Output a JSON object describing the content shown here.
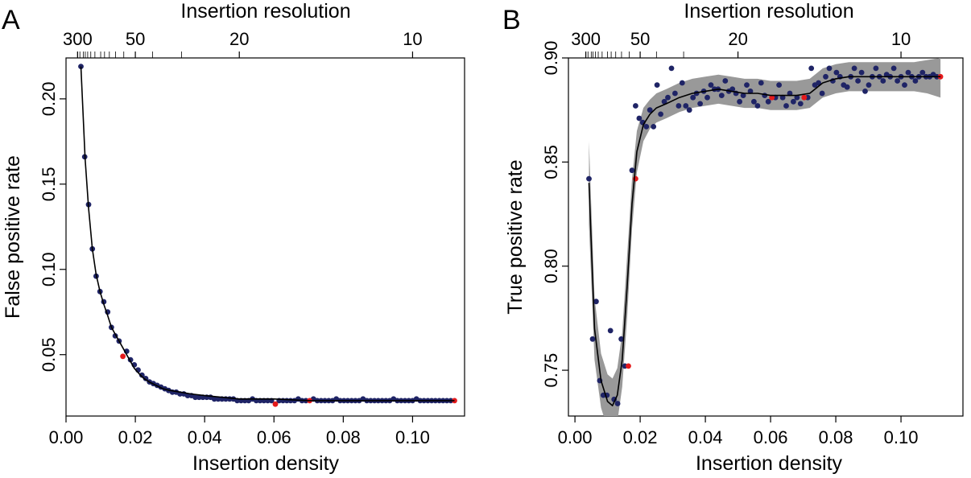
{
  "chart_data": [
    {
      "panel": "A",
      "type": "scatter",
      "xlabel": "Insertion density",
      "ylabel": "False positive rate",
      "top_axis_label": "Insertion resolution",
      "xlim": [
        0,
        0.115
      ],
      "ylim": [
        0.014,
        0.224
      ],
      "x_ticks": [
        0.0,
        0.02,
        0.04,
        0.06,
        0.08,
        0.1
      ],
      "x_tick_labels": [
        "0.00",
        "0.02",
        "0.04",
        "0.06",
        "0.08",
        "0.10"
      ],
      "y_ticks": [
        0.05,
        0.1,
        0.15,
        0.2
      ],
      "y_tick_labels": [
        "0.05",
        "0.10",
        "0.15",
        "0.20"
      ],
      "top_ticks": [
        300,
        50,
        20,
        10
      ],
      "top_tick_labels": [
        "300",
        "50",
        "20",
        "10"
      ],
      "top_minor_ticks": [
        300,
        250,
        200,
        180,
        160,
        140,
        120,
        100,
        90,
        80,
        70,
        60,
        50,
        40,
        30
      ],
      "series": [
        {
          "color": "#1f2466",
          "x": [
            0.0043,
            0.0054,
            0.0065,
            0.0076,
            0.0087,
            0.0098,
            0.0109,
            0.012,
            0.0131,
            0.0142,
            0.0153,
            0.0175,
            0.0186,
            0.0197,
            0.0208,
            0.0219,
            0.023,
            0.0241,
            0.0252,
            0.0263,
            0.0274,
            0.0285,
            0.0296,
            0.0307,
            0.0318,
            0.0329,
            0.034,
            0.0351,
            0.0362,
            0.0373,
            0.0384,
            0.0395,
            0.0406,
            0.0417,
            0.0428,
            0.0439,
            0.045,
            0.0461,
            0.0472,
            0.0483,
            0.0494,
            0.0505,
            0.0516,
            0.0527,
            0.0538,
            0.0549,
            0.056,
            0.0571,
            0.0582,
            0.0593,
            0.0615,
            0.0626,
            0.0637,
            0.0648,
            0.0659,
            0.067,
            0.0681,
            0.0692,
            0.0714,
            0.0725,
            0.0736,
            0.0747,
            0.0758,
            0.0769,
            0.078,
            0.0791,
            0.0802,
            0.0813,
            0.0824,
            0.0835,
            0.0846,
            0.0857,
            0.0868,
            0.0879,
            0.089,
            0.0901,
            0.0912,
            0.0923,
            0.0934,
            0.0945,
            0.0956,
            0.0967,
            0.0978,
            0.0989,
            0.1,
            0.1011,
            0.1022,
            0.1033,
            0.1044,
            0.1055,
            0.1066,
            0.1077,
            0.1088,
            0.1099,
            0.111
          ],
          "y": [
            0.219,
            0.166,
            0.138,
            0.112,
            0.096,
            0.087,
            0.081,
            0.075,
            0.066,
            0.061,
            0.058,
            0.052,
            0.047,
            0.044,
            0.041,
            0.038,
            0.036,
            0.034,
            0.033,
            0.032,
            0.031,
            0.03,
            0.029,
            0.028,
            0.028,
            0.027,
            0.027,
            0.026,
            0.026,
            0.025,
            0.025,
            0.025,
            0.025,
            0.025,
            0.024,
            0.024,
            0.024,
            0.024,
            0.024,
            0.024,
            0.023,
            0.023,
            0.023,
            0.023,
            0.024,
            0.023,
            0.023,
            0.023,
            0.023,
            0.023,
            0.023,
            0.023,
            0.023,
            0.023,
            0.023,
            0.024,
            0.023,
            0.023,
            0.024,
            0.023,
            0.023,
            0.023,
            0.023,
            0.023,
            0.024,
            0.023,
            0.023,
            0.023,
            0.023,
            0.023,
            0.023,
            0.024,
            0.023,
            0.023,
            0.023,
            0.023,
            0.023,
            0.023,
            0.023,
            0.024,
            0.023,
            0.023,
            0.023,
            0.023,
            0.023,
            0.024,
            0.023,
            0.023,
            0.023,
            0.023,
            0.023,
            0.023,
            0.023,
            0.023,
            0.023
          ]
        },
        {
          "color": "#e41a1c",
          "x": [
            0.0164,
            0.0604,
            0.0703,
            0.1121
          ],
          "y": [
            0.049,
            0.021,
            0.023,
            0.023
          ]
        }
      ],
      "curve": {
        "color": "#000000",
        "x": [
          0.0043,
          0.0055,
          0.0065,
          0.0076,
          0.0087,
          0.0098,
          0.011,
          0.012,
          0.0131,
          0.0142,
          0.0153,
          0.0164,
          0.0175,
          0.0186,
          0.0197,
          0.021,
          0.0225,
          0.024,
          0.026,
          0.028,
          0.03,
          0.033,
          0.036,
          0.04,
          0.045,
          0.05,
          0.06,
          0.07,
          0.08,
          0.09,
          0.1,
          0.1121
        ],
        "y": [
          0.219,
          0.165,
          0.136,
          0.112,
          0.097,
          0.087,
          0.079,
          0.073,
          0.066,
          0.062,
          0.058,
          0.054,
          0.05,
          0.046,
          0.042,
          0.039,
          0.036,
          0.034,
          0.032,
          0.03,
          0.029,
          0.028,
          0.027,
          0.026,
          0.025,
          0.024,
          0.024,
          0.023,
          0.023,
          0.023,
          0.023,
          0.023
        ]
      }
    },
    {
      "panel": "B",
      "type": "scatter",
      "xlabel": "Insertion density",
      "ylabel": "True positive rate",
      "top_axis_label": "Insertion resolution",
      "xlim": [
        -0.002,
        0.119
      ],
      "ylim": [
        0.728,
        0.9
      ],
      "x_ticks": [
        0.0,
        0.02,
        0.04,
        0.06,
        0.08,
        0.1
      ],
      "x_tick_labels": [
        "0.00",
        "0.02",
        "0.04",
        "0.06",
        "0.08",
        "0.10"
      ],
      "y_ticks": [
        0.75,
        0.8,
        0.85,
        0.9
      ],
      "y_tick_labels": [
        "0.75",
        "0.80",
        "0.85",
        "0.90"
      ],
      "top_ticks": [
        300,
        50,
        20,
        10
      ],
      "top_tick_labels": [
        "300",
        "50",
        "20",
        "10"
      ],
      "top_minor_ticks": [
        300,
        250,
        200,
        180,
        160,
        140,
        120,
        100,
        90,
        80,
        70,
        60,
        50,
        40,
        30
      ],
      "series": [
        {
          "color": "#1f2466",
          "x": [
            0.0043,
            0.0054,
            0.0065,
            0.0076,
            0.0087,
            0.0098,
            0.0109,
            0.012,
            0.0131,
            0.0142,
            0.0153,
            0.0175,
            0.0186,
            0.0197,
            0.0208,
            0.0219,
            0.023,
            0.0241,
            0.0252,
            0.0263,
            0.0274,
            0.0285,
            0.0296,
            0.0307,
            0.0318,
            0.0329,
            0.034,
            0.0351,
            0.0362,
            0.0373,
            0.0384,
            0.0395,
            0.0406,
            0.0417,
            0.0428,
            0.0439,
            0.045,
            0.0461,
            0.0472,
            0.0483,
            0.0494,
            0.0505,
            0.0516,
            0.0527,
            0.0538,
            0.0549,
            0.056,
            0.0571,
            0.0582,
            0.0593,
            0.0615,
            0.0626,
            0.0637,
            0.0648,
            0.0659,
            0.067,
            0.0681,
            0.0692,
            0.0714,
            0.0725,
            0.0736,
            0.0747,
            0.0758,
            0.0769,
            0.078,
            0.0791,
            0.0802,
            0.0813,
            0.0824,
            0.0835,
            0.0846,
            0.0857,
            0.0868,
            0.0879,
            0.089,
            0.0901,
            0.0912,
            0.0923,
            0.0934,
            0.0945,
            0.0956,
            0.0967,
            0.0978,
            0.0989,
            0.1,
            0.1011,
            0.1022,
            0.1033,
            0.1044,
            0.1055,
            0.1066,
            0.1077,
            0.1088,
            0.1099,
            0.111
          ],
          "y": [
            0.842,
            0.765,
            0.783,
            0.745,
            0.738,
            0.738,
            0.769,
            0.736,
            0.734,
            0.765,
            0.752,
            0.846,
            0.877,
            0.871,
            0.869,
            0.867,
            0.875,
            0.867,
            0.887,
            0.873,
            0.879,
            0.881,
            0.895,
            0.883,
            0.877,
            0.888,
            0.877,
            0.875,
            0.881,
            0.883,
            0.878,
            0.884,
            0.881,
            0.887,
            0.885,
            0.885,
            0.882,
            0.889,
            0.884,
            0.885,
            0.883,
            0.879,
            0.882,
            0.887,
            0.884,
            0.879,
            0.877,
            0.888,
            0.882,
            0.879,
            0.881,
            0.887,
            0.881,
            0.877,
            0.883,
            0.879,
            0.881,
            0.878,
            0.881,
            0.895,
            0.887,
            0.888,
            0.883,
            0.891,
            0.895,
            0.889,
            0.893,
            0.891,
            0.887,
            0.886,
            0.891,
            0.895,
            0.889,
            0.893,
            0.884,
            0.887,
            0.891,
            0.895,
            0.891,
            0.889,
            0.892,
            0.891,
            0.895,
            0.889,
            0.891,
            0.887,
            0.893,
            0.891,
            0.889,
            0.891,
            0.893,
            0.891,
            0.891,
            0.892,
            0.891
          ]
        },
        {
          "color": "#e41a1c",
          "x": [
            0.0164,
            0.0186,
            0.0604,
            0.0703,
            0.1121
          ],
          "y": [
            0.752,
            0.842,
            0.881,
            0.881,
            0.891
          ]
        }
      ],
      "curve": {
        "color": "#000000",
        "x": [
          0.0043,
          0.006,
          0.008,
          0.01,
          0.0115,
          0.013,
          0.0145,
          0.016,
          0.0175,
          0.019,
          0.021,
          0.023,
          0.025,
          0.028,
          0.032,
          0.036,
          0.04,
          0.044,
          0.048,
          0.052,
          0.056,
          0.06,
          0.064,
          0.068,
          0.072,
          0.076,
          0.08,
          0.084,
          0.088,
          0.092,
          0.096,
          0.1,
          0.104,
          0.108,
          0.1121
        ],
        "y": [
          0.84,
          0.77,
          0.745,
          0.735,
          0.733,
          0.738,
          0.755,
          0.79,
          0.83,
          0.855,
          0.868,
          0.873,
          0.876,
          0.878,
          0.881,
          0.883,
          0.884,
          0.885,
          0.884,
          0.883,
          0.883,
          0.882,
          0.882,
          0.882,
          0.883,
          0.888,
          0.89,
          0.891,
          0.891,
          0.891,
          0.891,
          0.891,
          0.891,
          0.891,
          0.891
        ]
      },
      "band": {
        "color": "#999999",
        "x": [
          0.0043,
          0.006,
          0.008,
          0.01,
          0.0115,
          0.013,
          0.0145,
          0.016,
          0.0175,
          0.019,
          0.021,
          0.023,
          0.025,
          0.028,
          0.032,
          0.036,
          0.04,
          0.044,
          0.048,
          0.052,
          0.056,
          0.06,
          0.064,
          0.068,
          0.072,
          0.076,
          0.08,
          0.084,
          0.088,
          0.092,
          0.096,
          0.1,
          0.104,
          0.108,
          0.1121
        ],
        "lower": [
          0.82,
          0.755,
          0.732,
          0.722,
          0.72,
          0.725,
          0.742,
          0.775,
          0.818,
          0.845,
          0.86,
          0.866,
          0.869,
          0.871,
          0.874,
          0.876,
          0.877,
          0.878,
          0.877,
          0.876,
          0.876,
          0.875,
          0.875,
          0.875,
          0.876,
          0.881,
          0.883,
          0.884,
          0.884,
          0.884,
          0.884,
          0.884,
          0.884,
          0.883,
          0.881
        ],
        "upper": [
          0.86,
          0.785,
          0.758,
          0.748,
          0.746,
          0.751,
          0.768,
          0.805,
          0.842,
          0.865,
          0.876,
          0.88,
          0.883,
          0.885,
          0.888,
          0.89,
          0.891,
          0.892,
          0.891,
          0.89,
          0.89,
          0.889,
          0.889,
          0.889,
          0.89,
          0.895,
          0.897,
          0.898,
          0.898,
          0.898,
          0.898,
          0.898,
          0.898,
          0.899,
          0.9
        ]
      }
    }
  ]
}
